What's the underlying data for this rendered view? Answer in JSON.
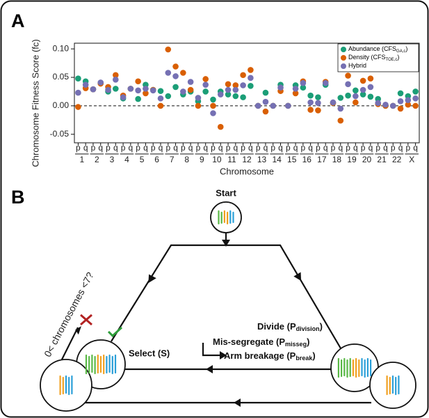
{
  "panels": {
    "a": "A",
    "b": "B"
  },
  "chart_data": {
    "type": "scatter",
    "ylabel": "Chromosome Fitness Score (fc)",
    "xlabel": "Chromosome",
    "categories": [
      "p",
      "q",
      "p",
      "q",
      "p",
      "q",
      "p",
      "q",
      "p",
      "q",
      "p",
      "q",
      "p",
      "q",
      "p",
      "q",
      "p",
      "q",
      "p",
      "q",
      "p",
      "q",
      "p",
      "q",
      "p",
      "q",
      "p",
      "q",
      "p",
      "q",
      "p",
      "q",
      "p",
      "q",
      "p",
      "q",
      "p",
      "q",
      "p",
      "q",
      "p",
      "q",
      "p",
      "q",
      "p",
      "q"
    ],
    "chromosomes": [
      "1",
      "2",
      "3",
      "4",
      "5",
      "6",
      "7",
      "8",
      "9",
      "10",
      "11",
      "12",
      "13",
      "14",
      "15",
      "16",
      "17",
      "18",
      "19",
      "20",
      "21",
      "22",
      "X"
    ],
    "ylim": [
      -0.065,
      0.11
    ],
    "yticks": [
      -0.05,
      {
        "value": 0,
        "label": "0.00"
      },
      0.05,
      {
        "value": 0.1,
        "label": "0.10"
      }
    ],
    "reference_line": 0,
    "series": [
      {
        "name": "Abundance (CFS",
        "name_sub": "GA,c",
        "name_end": ")",
        "color": "#1b9e77",
        "values": [
          0.048,
          0.043,
          0.029,
          0.04,
          0.025,
          0.03,
          0.013,
          0.03,
          0.012,
          0.037,
          0.028,
          0.026,
          0.017,
          0.033,
          0.02,
          0.025,
          0.008,
          0.025,
          0.011,
          0.025,
          0.02,
          0.017,
          0.015,
          0.035,
          0,
          0.023,
          0,
          0.037,
          0,
          0.036,
          0.032,
          0.018,
          0.015,
          0.037,
          0.005,
          0.014,
          0.018,
          0.027,
          0.02,
          0.016,
          0.012,
          0,
          0,
          0.022,
          0.017,
          0.025
        ]
      },
      {
        "name": "Density (CFS",
        "name_sub": "TOE,c",
        "name_end": ")",
        "color": "#d95f02",
        "values": [
          -0.002,
          0.031,
          0.029,
          0.039,
          0.033,
          0.054,
          0.018,
          0.03,
          0.043,
          0.022,
          0.028,
          0,
          0.099,
          0.069,
          0.058,
          0.028,
          0,
          0.047,
          0,
          -0.037,
          0.038,
          0.036,
          0.054,
          0.063,
          0,
          -0.01,
          0,
          0.026,
          0,
          0.022,
          0.043,
          -0.007,
          -0.008,
          0.042,
          0.005,
          -0.026,
          0.053,
          0.006,
          0.044,
          0.048,
          0.003,
          0,
          0,
          -0.005,
          0.002,
          0
        ]
      },
      {
        "name": "Hybrid",
        "color": "#7570b3",
        "values": [
          0.023,
          0.037,
          0.029,
          0.041,
          0.028,
          0.046,
          0.015,
          0.03,
          0.027,
          0.03,
          0.027,
          0.013,
          0.058,
          0.052,
          0.025,
          0.042,
          0.014,
          0.037,
          -0.013,
          0.02,
          0.028,
          0.028,
          0.036,
          0.049,
          0,
          0.007,
          0,
          0.032,
          0,
          0.03,
          0.04,
          0.006,
          0.005,
          0.04,
          0.006,
          -0.005,
          0.038,
          0.017,
          0.028,
          0.033,
          0.005,
          0.002,
          0,
          0.008,
          0.01,
          0.013
        ]
      }
    ]
  },
  "diagram": {
    "start": "Start",
    "select": "Select (S)",
    "condition": "0< chromosomes <7?",
    "divide": [
      "Divide (P",
      "division",
      ")"
    ],
    "misseg": [
      "Mis-segregate (P",
      "misseg",
      ")"
    ],
    "break": [
      "Arm breakage (P",
      "break",
      ")"
    ]
  }
}
